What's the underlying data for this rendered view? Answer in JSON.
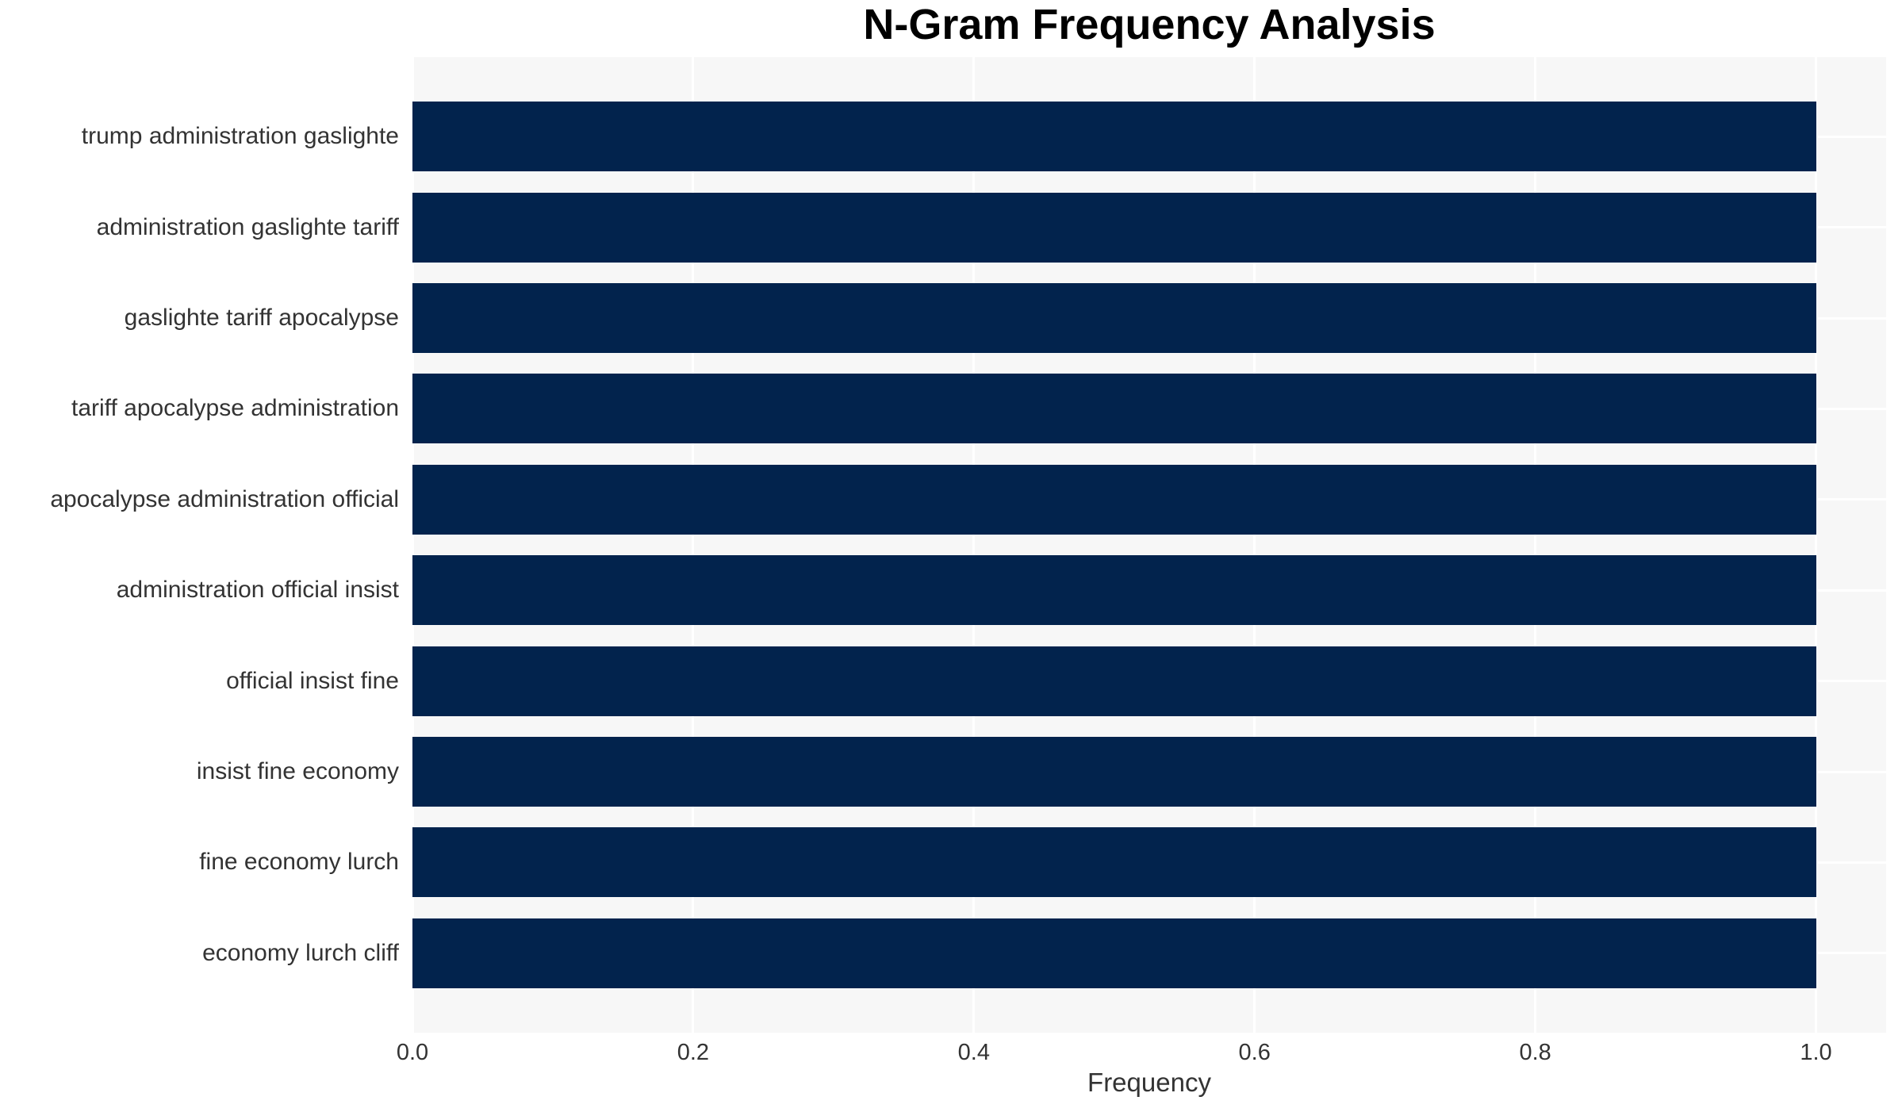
{
  "chart_data": {
    "type": "bar",
    "orientation": "horizontal",
    "title": "N-Gram Frequency Analysis",
    "xlabel": "Frequency",
    "ylabel": "",
    "categories": [
      "trump administration gaslighte",
      "administration gaslighte tariff",
      "gaslighte tariff apocalypse",
      "tariff apocalypse administration",
      "apocalypse administration official",
      "administration official insist",
      "official insist fine",
      "insist fine economy",
      "fine economy lurch",
      "economy lurch cliff"
    ],
    "values": [
      1.0,
      1.0,
      1.0,
      1.0,
      1.0,
      1.0,
      1.0,
      1.0,
      1.0,
      1.0
    ],
    "xticks": [
      0.0,
      0.2,
      0.4,
      0.6,
      0.8,
      1.0
    ],
    "xtick_labels": [
      "0.0",
      "0.2",
      "0.4",
      "0.6",
      "0.8",
      "1.0"
    ],
    "xlim": [
      0,
      1.05
    ],
    "grid": true,
    "legend": null,
    "colors": {
      "bar": "#02234d",
      "plot_background": "#f7f7f7",
      "gridline": "#ffffff",
      "title": "#000000",
      "tick_label": "#333333",
      "axis_label": "#333333"
    }
  }
}
